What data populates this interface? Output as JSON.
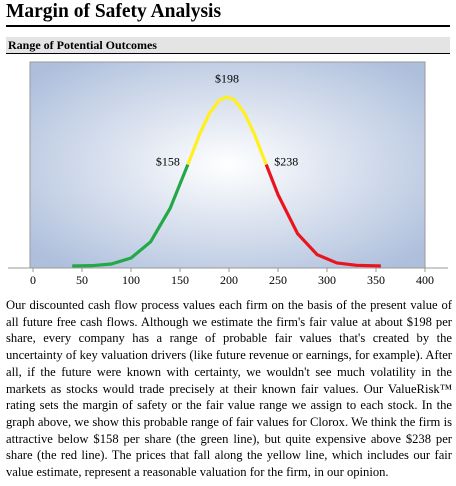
{
  "header": {
    "title": "Margin of Safety Analysis"
  },
  "section": {
    "title": "Range of Potential Outcomes"
  },
  "chart_data": {
    "type": "line",
    "xlim": [
      0,
      400
    ],
    "xticks": [
      0,
      50,
      100,
      150,
      200,
      250,
      300,
      350,
      400
    ],
    "ylim": [
      0,
      110
    ],
    "series": [
      {
        "color": "#22a845",
        "x": [
          40,
          60,
          80,
          100,
          120,
          140,
          158
        ],
        "values": [
          0.03,
          0.2,
          1.2,
          4.7,
          14.3,
          34.2,
          60
        ]
      },
      {
        "color": "#fff01e",
        "x": [
          158,
          170,
          180,
          190,
          198,
          206,
          216,
          226,
          238
        ],
        "values": [
          60,
          77.9,
          90.2,
          98,
          100,
          98,
          90.2,
          77.9,
          60
        ]
      },
      {
        "color": "#e8141e",
        "x": [
          238,
          250,
          270,
          290,
          310,
          330,
          355
        ],
        "values": [
          60,
          42.2,
          19.1,
          6.7,
          1.8,
          0.4,
          0.04
        ]
      }
    ],
    "annotations": [
      {
        "value": 198,
        "label": "$198"
      },
      {
        "value": 158,
        "label": "$158"
      },
      {
        "value": 238,
        "label": "$238"
      }
    ]
  },
  "body": {
    "paragraph": "Our discounted cash flow process values each firm on the basis of the present value of all future free cash flows. Although we estimate the firm's fair value at about $198 per share, every company has a range of probable fair values that's created by the uncertainty of key valuation drivers (like future revenue or earnings, for example). After all, if the future were known with certainty, we wouldn't see much volatility in the markets as stocks would trade precisely at their known fair values. Our ValueRisk™ rating sets the margin of safety or the fair value range we assign to each stock. In the graph above, we show this probable range of fair values for Clorox. We think the firm is attractive below $158 per share (the green line), but quite expensive above $238 per share (the red line). The prices that fall along the yellow line, which includes our fair value estimate, represent a reasonable valuation for the firm, in our opinion."
  }
}
